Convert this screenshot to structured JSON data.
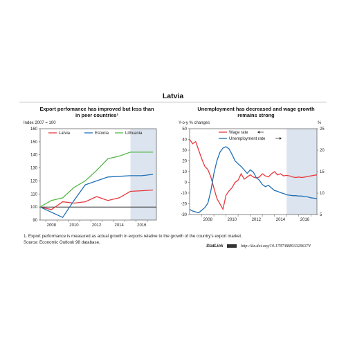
{
  "page": {
    "title": "Latvia",
    "footnote": "1.  Export performance is measured as actual growth in exports relative to the growth of the country's export market.",
    "source": "Source:  Economic Outlook 98 database.",
    "statlink_brand": "StatLink",
    "statlink_url": "http://dx.doi.org/10.1787/888933296374"
  },
  "chart_data": [
    {
      "type": "line",
      "title": "Export perfomance has improved but less than in peer countries¹",
      "ylabel": "Index 2007 = 100",
      "xlabel": "",
      "x": [
        "2007",
        "2008",
        "2009",
        "2010",
        "2011",
        "2012",
        "2013",
        "2014",
        "2015",
        "2016",
        "2017"
      ],
      "x_ticks": [
        "2008",
        "2010",
        "2012",
        "2014",
        "2016"
      ],
      "ylim": [
        90,
        160
      ],
      "y_ticks": [
        90,
        100,
        110,
        120,
        130,
        140,
        150,
        160
      ],
      "projection_shaded_from": "2015",
      "legend_position": "top",
      "colors": {
        "Latvia": "#e8383d",
        "Estonia": "#1f6fb5",
        "Lithuania": "#55b748",
        "shade": "#dce5ef"
      },
      "series": [
        {
          "name": "Latvia",
          "values": [
            100,
            98,
            104,
            103,
            104,
            108,
            105,
            107,
            112,
            112.5,
            113
          ]
        },
        {
          "name": "Estonia",
          "values": [
            100,
            96,
            92,
            105,
            117,
            120,
            123,
            123.5,
            124,
            124,
            125
          ]
        },
        {
          "name": "Lithuania",
          "values": [
            100,
            105,
            107,
            115,
            120,
            128,
            137,
            139,
            142,
            142,
            142
          ]
        }
      ]
    },
    {
      "type": "line",
      "title": "Unemployment has decreased and wage growth remains strong",
      "ylabel": "Y-o-y % changes",
      "y2label": "%",
      "xlabel": "",
      "x_start": 2007.0,
      "x_end": 2017.5,
      "x_ticks": [
        "2008",
        "2010",
        "2012",
        "2014",
        "2016"
      ],
      "ylim": [
        -30,
        50
      ],
      "y_ticks": [
        -30,
        -20,
        -10,
        0,
        10,
        20,
        30,
        40,
        50
      ],
      "y2lim": [
        5,
        25
      ],
      "y2_ticks": [
        5,
        10,
        15,
        20,
        25
      ],
      "projection_shaded_from": 2015.0,
      "legend_position": "top-center",
      "colors": {
        "Wage rate": "#e8383d",
        "Unemployment rate": "#1f6fb5",
        "shade": "#dce5ef"
      },
      "series": [
        {
          "name": "Wage rate",
          "axis": "left",
          "x": [
            2007.0,
            2007.25,
            2007.5,
            2007.75,
            2008.0,
            2008.25,
            2008.5,
            2008.75,
            2009.0,
            2009.25,
            2009.5,
            2009.75,
            2010.0,
            2010.25,
            2010.5,
            2010.75,
            2011.0,
            2011.25,
            2011.5,
            2011.75,
            2012.0,
            2012.25,
            2012.5,
            2012.75,
            2013.0,
            2013.25,
            2013.5,
            2013.75,
            2014.0,
            2014.25,
            2014.5,
            2014.75,
            2015.0,
            2015.25,
            2015.5,
            2015.75,
            2016.0,
            2016.25,
            2016.5,
            2016.75,
            2017.0,
            2017.25,
            2017.5
          ],
          "values": [
            40,
            36,
            38,
            30,
            22,
            15,
            12,
            5,
            -5,
            -15,
            -20,
            -25,
            -12,
            -8,
            -5,
            0,
            2,
            8,
            3,
            5,
            7,
            5,
            4,
            5,
            8,
            6,
            5,
            8,
            10,
            7,
            8,
            6,
            6.5,
            6,
            5,
            4.5,
            5,
            4.5,
            5,
            5.5,
            6,
            6.5,
            7
          ]
        },
        {
          "name": "Unemployment rate",
          "axis": "right",
          "x": [
            2007.0,
            2007.25,
            2007.5,
            2007.75,
            2008.0,
            2008.25,
            2008.5,
            2008.75,
            2009.0,
            2009.25,
            2009.5,
            2009.75,
            2010.0,
            2010.25,
            2010.5,
            2010.75,
            2011.0,
            2011.25,
            2011.5,
            2011.75,
            2012.0,
            2012.25,
            2012.5,
            2012.75,
            2013.0,
            2013.25,
            2013.5,
            2013.75,
            2014.0,
            2014.25,
            2014.5,
            2014.75,
            2015.0,
            2015.25,
            2015.5,
            2015.75,
            2016.0,
            2016.25,
            2016.5,
            2016.75,
            2017.0,
            2017.25,
            2017.5
          ],
          "values": [
            6.2,
            5.8,
            5.6,
            5.4,
            6.0,
            6.6,
            7.6,
            10.5,
            14.5,
            17.5,
            19.5,
            20.5,
            20.8,
            20.3,
            19.0,
            17.5,
            16.8,
            16.2,
            15.4,
            14.6,
            15.4,
            14.9,
            13.6,
            13.0,
            12.0,
            11.5,
            11.8,
            11.2,
            10.6,
            10.4,
            10.1,
            9.9,
            9.6,
            9.5,
            9.4,
            9.4,
            9.3,
            9.3,
            9.2,
            9.1,
            8.9,
            8.8,
            8.7
          ]
        }
      ]
    }
  ]
}
